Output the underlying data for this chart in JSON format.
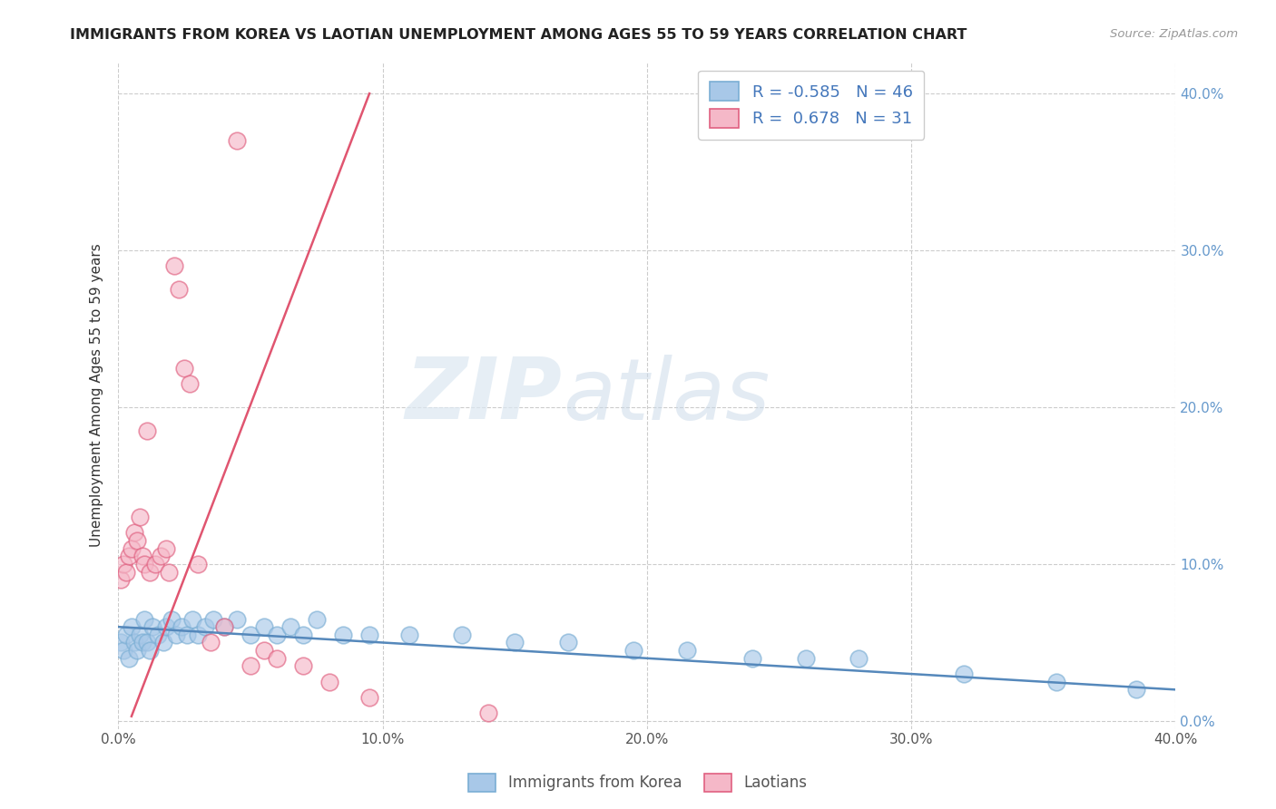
{
  "title": "IMMIGRANTS FROM KOREA VS LAOTIAN UNEMPLOYMENT AMONG AGES 55 TO 59 YEARS CORRELATION CHART",
  "source": "Source: ZipAtlas.com",
  "ylabel": "Unemployment Among Ages 55 to 59 years",
  "xlim": [
    0.0,
    0.4
  ],
  "ylim": [
    -0.005,
    0.42
  ],
  "xtick_vals": [
    0.0,
    0.1,
    0.2,
    0.3,
    0.4
  ],
  "ytick_vals": [
    0.0,
    0.1,
    0.2,
    0.3,
    0.4
  ],
  "grid_color": "#cccccc",
  "background_color": "#ffffff",
  "watermark_zip": "ZIP",
  "watermark_atlas": "atlas",
  "legend_R_korea": "-0.585",
  "legend_N_korea": "46",
  "legend_R_laotian": "0.678",
  "legend_N_laotian": "31",
  "korea_color": "#a8c8e8",
  "korea_edge_color": "#7aaed4",
  "laotian_color": "#f5b8c8",
  "laotian_edge_color": "#e06080",
  "korea_line_color": "#5588bb",
  "laotian_line_color": "#e05570",
  "korea_scatter_x": [
    0.001,
    0.002,
    0.003,
    0.004,
    0.005,
    0.006,
    0.007,
    0.008,
    0.009,
    0.01,
    0.011,
    0.012,
    0.013,
    0.015,
    0.017,
    0.018,
    0.02,
    0.022,
    0.024,
    0.026,
    0.028,
    0.03,
    0.033,
    0.036,
    0.04,
    0.045,
    0.05,
    0.055,
    0.06,
    0.065,
    0.07,
    0.075,
    0.085,
    0.095,
    0.11,
    0.13,
    0.15,
    0.17,
    0.195,
    0.215,
    0.24,
    0.26,
    0.28,
    0.32,
    0.355,
    0.385
  ],
  "korea_scatter_y": [
    0.05,
    0.045,
    0.055,
    0.04,
    0.06,
    0.05,
    0.045,
    0.055,
    0.05,
    0.065,
    0.05,
    0.045,
    0.06,
    0.055,
    0.05,
    0.06,
    0.065,
    0.055,
    0.06,
    0.055,
    0.065,
    0.055,
    0.06,
    0.065,
    0.06,
    0.065,
    0.055,
    0.06,
    0.055,
    0.06,
    0.055,
    0.065,
    0.055,
    0.055,
    0.055,
    0.055,
    0.05,
    0.05,
    0.045,
    0.045,
    0.04,
    0.04,
    0.04,
    0.03,
    0.025,
    0.02
  ],
  "laotian_scatter_x": [
    0.001,
    0.002,
    0.003,
    0.004,
    0.005,
    0.006,
    0.007,
    0.008,
    0.009,
    0.01,
    0.011,
    0.012,
    0.014,
    0.016,
    0.018,
    0.019,
    0.021,
    0.023,
    0.025,
    0.027,
    0.03,
    0.035,
    0.04,
    0.045,
    0.05,
    0.055,
    0.06,
    0.07,
    0.08,
    0.095,
    0.14
  ],
  "laotian_scatter_y": [
    0.09,
    0.1,
    0.095,
    0.105,
    0.11,
    0.12,
    0.115,
    0.13,
    0.105,
    0.1,
    0.185,
    0.095,
    0.1,
    0.105,
    0.11,
    0.095,
    0.29,
    0.275,
    0.225,
    0.215,
    0.1,
    0.05,
    0.06,
    0.37,
    0.035,
    0.045,
    0.04,
    0.035,
    0.025,
    0.015,
    0.005
  ],
  "korea_trend_x": [
    0.0,
    0.4
  ],
  "korea_trend_y": [
    0.06,
    0.02
  ],
  "laotian_trend_x": [
    0.005,
    0.095
  ],
  "laotian_trend_y": [
    0.003,
    0.4
  ]
}
